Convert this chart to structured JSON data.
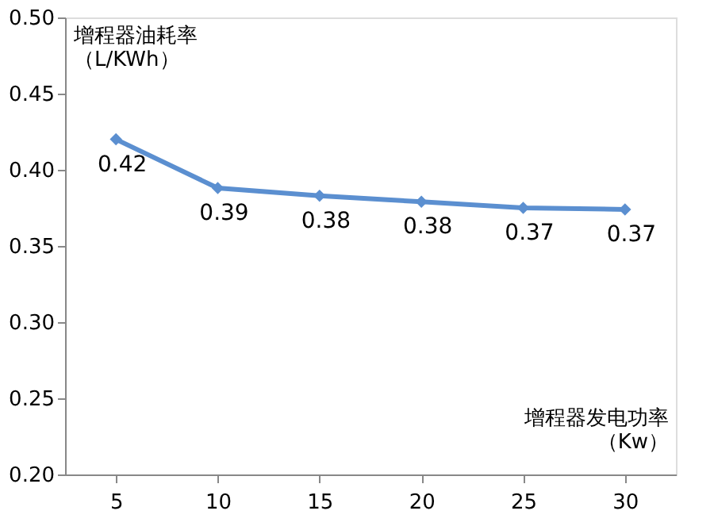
{
  "chart_data": {
    "type": "line",
    "xlabel": "增程器发电功率（Kw）",
    "ylabel": "增程器油耗率（L/KWh）",
    "categories": [
      "5",
      "10",
      "15",
      "20",
      "25",
      "30"
    ],
    "series": [
      {
        "color": "#5b8fd0",
        "values": [
          0.42,
          0.388,
          0.383,
          0.379,
          0.375,
          0.374
        ],
        "value_labels": [
          "0.42",
          "0.39",
          "0.38",
          "0.38",
          "0.37",
          "0.37"
        ]
      }
    ],
    "ylim": [
      0.2,
      0.5
    ],
    "yticks": [
      {
        "value": 0.2,
        "label": "0.20"
      },
      {
        "value": 0.25,
        "label": "0.25"
      },
      {
        "value": 0.3,
        "label": "0.30"
      },
      {
        "value": 0.35,
        "label": "0.35"
      },
      {
        "value": 0.4,
        "label": "0.40"
      },
      {
        "value": 0.45,
        "label": "0.45"
      },
      {
        "value": 0.5,
        "label": "0.50"
      }
    ],
    "marker": "diamond",
    "grid": false
  }
}
